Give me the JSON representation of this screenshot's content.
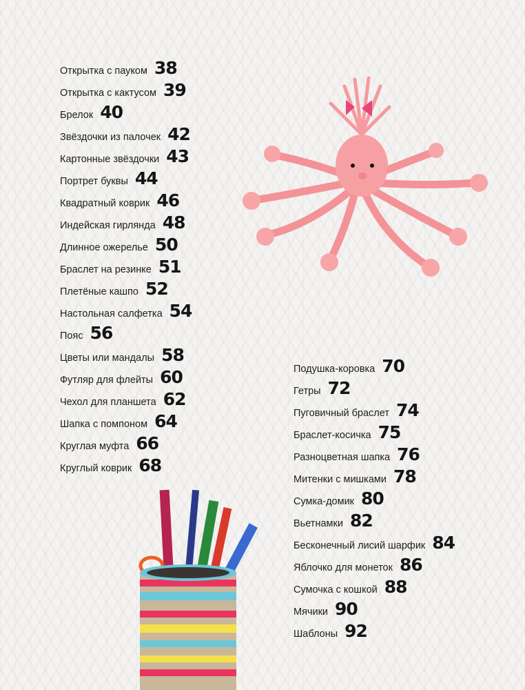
{
  "toc_left": [
    {
      "title": "Открытка с пауком",
      "page": "38"
    },
    {
      "title": "Открытка с кактусом",
      "page": "39"
    },
    {
      "title": "Брелок",
      "page": "40"
    },
    {
      "title": "Звёздочки из палочек",
      "page": "42"
    },
    {
      "title": "Картонные звёздочки",
      "page": "43"
    },
    {
      "title": "Портрет буквы",
      "page": "44"
    },
    {
      "title": "Квадратный коврик",
      "page": "46"
    },
    {
      "title": "Индейская гирлянда",
      "page": "48"
    },
    {
      "title": "Длинное ожерелье",
      "page": "50"
    },
    {
      "title": "Браслет на резинке",
      "page": "51"
    },
    {
      "title": "Плетёные кашпо",
      "page": "52"
    },
    {
      "title": "Настольная салфетка",
      "page": "54"
    },
    {
      "title": "Пояс",
      "page": "56"
    },
    {
      "title": "Цветы или мандалы",
      "page": "58"
    },
    {
      "title": "Футляр для флейты",
      "page": "60"
    },
    {
      "title": "Чехол для планшета",
      "page": "62"
    },
    {
      "title": "Шапка с помпоном",
      "page": "64"
    },
    {
      "title": "Круглая муфта",
      "page": "66"
    },
    {
      "title": "Круглый коврик",
      "page": "68"
    }
  ],
  "toc_right": [
    {
      "title": "Подушка-коровка",
      "page": "70"
    },
    {
      "title": "Гетры",
      "page": "72"
    },
    {
      "title": "Пуговичный браслет",
      "page": "74"
    },
    {
      "title": "Браслет-косичка",
      "page": "75"
    },
    {
      "title": "Разноцветная шапка",
      "page": "76"
    },
    {
      "title": "Митенки с мишками",
      "page": "78"
    },
    {
      "title": "Сумка-домик",
      "page": "80"
    },
    {
      "title": "Вьетнамки",
      "page": "82"
    },
    {
      "title": "Бесконечный лисий шарфик",
      "page": "84"
    },
    {
      "title": "Яблочко для монеток",
      "page": "86"
    },
    {
      "title": "Сумочка с кошкой",
      "page": "88"
    },
    {
      "title": "Мячики",
      "page": "90"
    },
    {
      "title": "Шаблоны",
      "page": "92"
    }
  ],
  "colors": {
    "octopus": "#f59a9e",
    "bow": "#e8457a"
  }
}
